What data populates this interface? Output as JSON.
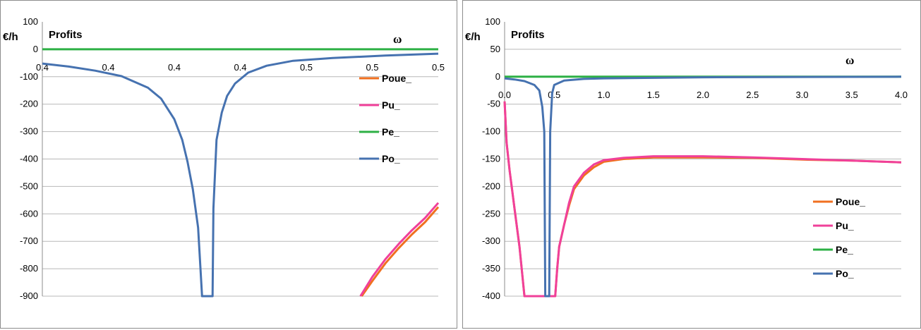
{
  "chart_data": [
    {
      "type": "line",
      "ylabel": "€/h",
      "title": "Profits",
      "xlabel": "ω",
      "xlim": [
        0.35,
        0.5
      ],
      "ylim": [
        -900,
        100
      ],
      "x_tick_values": [
        0.35,
        0.375,
        0.4,
        0.425,
        0.45,
        0.475,
        0.5
      ],
      "x_tick_labels": [
        "0.4",
        "0.4",
        "0.4",
        "0.4",
        "0.5",
        "0.5",
        "0.5"
      ],
      "y_ticks": [
        100,
        0,
        -100,
        -200,
        -300,
        -400,
        -500,
        -600,
        -700,
        -800,
        -900
      ],
      "grid": true,
      "legend_position": "right",
      "series": [
        {
          "name": "Poue_",
          "color": "#F07020",
          "points": [
            [
              0.471,
              -900
            ],
            [
              0.475,
              -845
            ],
            [
              0.48,
              -780
            ],
            [
              0.485,
              -725
            ],
            [
              0.49,
              -675
            ],
            [
              0.495,
              -630
            ],
            [
              0.5,
              -575
            ]
          ]
        },
        {
          "name": "Pu_",
          "color": "#F0409A",
          "points": [
            [
              0.4705,
              -900
            ],
            [
              0.475,
              -830
            ],
            [
              0.48,
              -765
            ],
            [
              0.485,
              -710
            ],
            [
              0.49,
              -660
            ],
            [
              0.495,
              -615
            ],
            [
              0.5,
              -560
            ]
          ]
        },
        {
          "name": "Pe_",
          "color": "#2DB045",
          "points": [
            [
              0.35,
              0
            ],
            [
              0.5,
              0
            ]
          ]
        },
        {
          "name": "Po_",
          "color": "#4672B0",
          "points": [
            [
              0.35,
              -52
            ],
            [
              0.36,
              -63
            ],
            [
              0.37,
              -78
            ],
            [
              0.38,
              -98
            ],
            [
              0.39,
              -140
            ],
            [
              0.395,
              -180
            ],
            [
              0.4,
              -255
            ],
            [
              0.403,
              -330
            ],
            [
              0.405,
              -410
            ],
            [
              0.407,
              -510
            ],
            [
              0.409,
              -650
            ],
            [
              0.4105,
              -900
            ],
            [
              0.4145,
              -900
            ],
            [
              0.4148,
              -580
            ],
            [
              0.416,
              -330
            ],
            [
              0.418,
              -230
            ],
            [
              0.42,
              -170
            ],
            [
              0.423,
              -125
            ],
            [
              0.428,
              -85
            ],
            [
              0.435,
              -60
            ],
            [
              0.445,
              -42
            ],
            [
              0.46,
              -32
            ],
            [
              0.48,
              -23
            ],
            [
              0.5,
              -16
            ]
          ]
        }
      ]
    },
    {
      "type": "line",
      "ylabel": "€/h",
      "title": "Profits",
      "xlabel": "ω",
      "xlim": [
        0.0,
        4.0
      ],
      "ylim": [
        -400,
        100
      ],
      "x_tick_values": [
        0.0,
        0.5,
        1.0,
        1.5,
        2.0,
        2.5,
        3.0,
        3.5,
        4.0
      ],
      "x_tick_labels": [
        "0.0",
        "0.5",
        "1.0",
        "1.5",
        "2.0",
        "2.5",
        "3.0",
        "3.5",
        "4.0"
      ],
      "y_ticks": [
        100,
        50,
        0,
        -50,
        -100,
        -150,
        -200,
        -250,
        -300,
        -350,
        -400
      ],
      "grid": true,
      "legend_position": "right",
      "series": [
        {
          "name": "Poue_",
          "color": "#F07020",
          "points": [
            [
              0.0,
              -45
            ],
            [
              0.02,
              -120
            ],
            [
              0.05,
              -170
            ],
            [
              0.1,
              -240
            ],
            [
              0.15,
              -310
            ],
            [
              0.2,
              -400
            ],
            [
              0.51,
              -400
            ],
            [
              0.53,
              -350
            ],
            [
              0.55,
              -310
            ],
            [
              0.6,
              -270
            ],
            [
              0.65,
              -235
            ],
            [
              0.7,
              -205
            ],
            [
              0.8,
              -180
            ],
            [
              0.9,
              -165
            ],
            [
              1.0,
              -155
            ],
            [
              1.2,
              -150
            ],
            [
              1.5,
              -147
            ],
            [
              2.0,
              -147
            ],
            [
              2.5,
              -148
            ],
            [
              3.0,
              -151
            ],
            [
              3.5,
              -153
            ],
            [
              4.0,
              -156
            ]
          ]
        },
        {
          "name": "Pu_",
          "color": "#F0409A",
          "points": [
            [
              0.0,
              -45
            ],
            [
              0.02,
              -120
            ],
            [
              0.05,
              -170
            ],
            [
              0.1,
              -240
            ],
            [
              0.15,
              -310
            ],
            [
              0.2,
              -400
            ],
            [
              0.51,
              -400
            ],
            [
              0.53,
              -350
            ],
            [
              0.55,
              -310
            ],
            [
              0.6,
              -270
            ],
            [
              0.65,
              -230
            ],
            [
              0.7,
              -200
            ],
            [
              0.8,
              -175
            ],
            [
              0.9,
              -160
            ],
            [
              1.0,
              -152
            ],
            [
              1.2,
              -148
            ],
            [
              1.5,
              -145
            ],
            [
              2.0,
              -145
            ],
            [
              2.5,
              -147
            ],
            [
              3.0,
              -150
            ],
            [
              3.5,
              -153
            ],
            [
              4.0,
              -156
            ]
          ]
        },
        {
          "name": "Pe_",
          "color": "#2DB045",
          "points": [
            [
              0.0,
              0
            ],
            [
              4.0,
              0
            ]
          ]
        },
        {
          "name": "Po_",
          "color": "#4672B0",
          "points": [
            [
              0.0,
              -3
            ],
            [
              0.1,
              -5
            ],
            [
              0.2,
              -8
            ],
            [
              0.3,
              -15
            ],
            [
              0.35,
              -25
            ],
            [
              0.38,
              -55
            ],
            [
              0.4,
              -100
            ],
            [
              0.41,
              -400
            ],
            [
              0.45,
              -400
            ],
            [
              0.46,
              -100
            ],
            [
              0.48,
              -30
            ],
            [
              0.5,
              -15
            ],
            [
              0.6,
              -7
            ],
            [
              0.8,
              -4
            ],
            [
              1.0,
              -3
            ],
            [
              2.0,
              -1
            ],
            [
              4.0,
              0
            ]
          ]
        }
      ]
    }
  ]
}
